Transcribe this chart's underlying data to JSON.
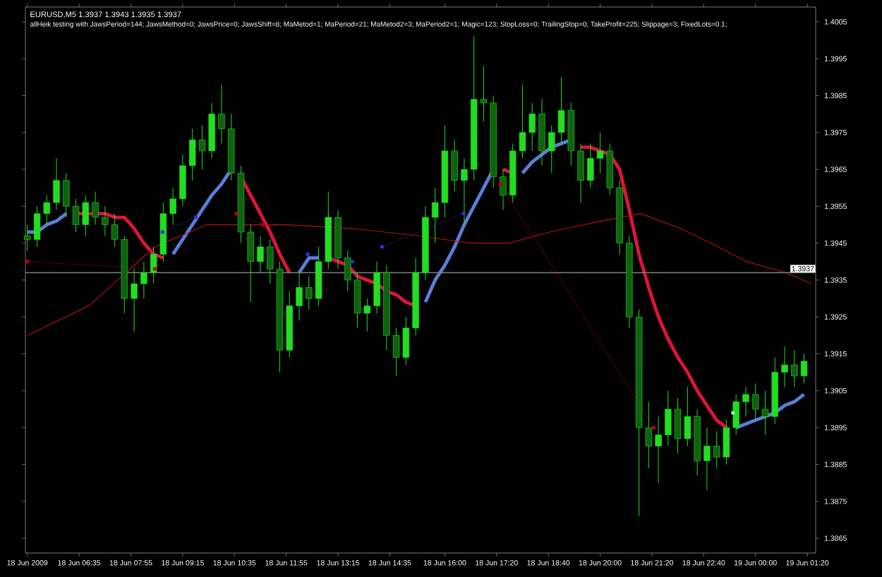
{
  "chart_data": {
    "type": "candlestick",
    "title": "EURUSD,M5  1.3937 1.3943 1.3935 1.3937",
    "subtitle": "allHeik testing with JawsPeriod=144; JawsMethod=0; JawsPrice=0; JawsShift=8; MaMetod=1; MaPeriod=21; MaMetod2=3; MaPeriod2=1; Magic=123; StopLoss=0; TrailingStop=0; TakeProfit=225; Slippage=3; FixedLots=0.1;",
    "color": "#22dd22",
    "x": [
      "2009-06-18T05:15",
      "2009-06-18T05:30",
      "2009-06-18T05:45",
      "2009-06-18T06:00",
      "2009-06-18T06:15",
      "2009-06-18T06:30",
      "2009-06-18T06:45",
      "2009-06-18T07:00",
      "2009-06-18T07:15",
      "2009-06-18T07:30",
      "2009-06-18T07:45",
      "2009-06-18T08:00",
      "2009-06-18T08:15",
      "2009-06-18T08:30",
      "2009-06-18T08:45",
      "2009-06-18T09:00",
      "2009-06-18T09:15",
      "2009-06-18T09:30",
      "2009-06-18T09:45",
      "2009-06-18T10:00",
      "2009-06-18T10:15",
      "2009-06-18T10:30",
      "2009-06-18T10:45",
      "2009-06-18T11:00",
      "2009-06-18T11:15",
      "2009-06-18T11:30",
      "2009-06-18T11:45",
      "2009-06-18T12:00",
      "2009-06-18T12:15",
      "2009-06-18T12:30",
      "2009-06-18T12:45",
      "2009-06-18T13:00",
      "2009-06-18T13:15",
      "2009-06-18T13:30",
      "2009-06-18T13:45",
      "2009-06-18T14:00",
      "2009-06-18T14:15",
      "2009-06-18T14:30",
      "2009-06-18T14:45",
      "2009-06-18T15:00",
      "2009-06-18T15:15",
      "2009-06-18T15:30",
      "2009-06-18T15:45",
      "2009-06-18T16:00",
      "2009-06-18T16:15",
      "2009-06-18T16:30",
      "2009-06-18T16:45",
      "2009-06-18T17:00",
      "2009-06-18T17:15",
      "2009-06-18T17:30",
      "2009-06-18T17:45",
      "2009-06-18T18:00",
      "2009-06-18T18:15",
      "2009-06-18T18:30",
      "2009-06-18T18:45",
      "2009-06-18T19:00",
      "2009-06-18T19:15",
      "2009-06-18T19:30",
      "2009-06-18T19:45",
      "2009-06-18T20:00",
      "2009-06-18T20:15",
      "2009-06-18T20:30",
      "2009-06-18T20:45",
      "2009-06-18T21:00",
      "2009-06-18T21:15",
      "2009-06-18T21:30",
      "2009-06-18T21:45",
      "2009-06-18T22:00",
      "2009-06-18T22:15",
      "2009-06-18T22:30",
      "2009-06-18T22:45",
      "2009-06-18T23:00",
      "2009-06-18T23:15",
      "2009-06-18T23:30",
      "2009-06-18T23:45",
      "2009-06-19T00:00",
      "2009-06-19T00:15",
      "2009-06-19T00:30",
      "2009-06-19T00:45",
      "2009-06-19T01:00",
      "2009-06-19T01:15"
    ],
    "ohlc": [
      [
        1.3947,
        1.395,
        1.3943,
        1.3946
      ],
      [
        1.3946,
        1.3955,
        1.3944,
        1.3953
      ],
      [
        1.3953,
        1.3958,
        1.395,
        1.3956
      ],
      [
        1.3956,
        1.3968,
        1.3954,
        1.3962
      ],
      [
        1.3962,
        1.3964,
        1.3952,
        1.3955
      ],
      [
        1.3955,
        1.3957,
        1.3948,
        1.395
      ],
      [
        1.395,
        1.3958,
        1.3947,
        1.3956
      ],
      [
        1.3956,
        1.3959,
        1.395,
        1.3952
      ],
      [
        1.3952,
        1.3955,
        1.3947,
        1.395
      ],
      [
        1.395,
        1.3953,
        1.3944,
        1.3946
      ],
      [
        1.3946,
        1.3947,
        1.3926,
        1.393
      ],
      [
        1.393,
        1.3938,
        1.3921,
        1.3934
      ],
      [
        1.3934,
        1.394,
        1.393,
        1.3937
      ],
      [
        1.3937,
        1.3944,
        1.3934,
        1.3942
      ],
      [
        1.3942,
        1.3956,
        1.394,
        1.3953
      ],
      [
        1.3953,
        1.396,
        1.395,
        1.3957
      ],
      [
        1.3957,
        1.3969,
        1.3955,
        1.3966
      ],
      [
        1.3966,
        1.3976,
        1.3962,
        1.3973
      ],
      [
        1.3973,
        1.3977,
        1.3965,
        1.397
      ],
      [
        1.397,
        1.3983,
        1.3968,
        1.398
      ],
      [
        1.398,
        1.3988,
        1.3972,
        1.3976
      ],
      [
        1.3976,
        1.398,
        1.3962,
        1.3964
      ],
      [
        1.3964,
        1.3966,
        1.3945,
        1.3948
      ],
      [
        1.3948,
        1.395,
        1.3929,
        1.394
      ],
      [
        1.394,
        1.3947,
        1.3937,
        1.3944
      ],
      [
        1.3944,
        1.3946,
        1.3934,
        1.3938
      ],
      [
        1.3938,
        1.394,
        1.391,
        1.3916
      ],
      [
        1.3916,
        1.3932,
        1.3914,
        1.3928
      ],
      [
        1.3928,
        1.3937,
        1.3924,
        1.3933
      ],
      [
        1.3933,
        1.3936,
        1.3927,
        1.393
      ],
      [
        1.393,
        1.3944,
        1.3928,
        1.394
      ],
      [
        1.394,
        1.3959,
        1.3938,
        1.3952
      ],
      [
        1.3952,
        1.3954,
        1.3938,
        1.3941
      ],
      [
        1.3941,
        1.3943,
        1.3932,
        1.3935
      ],
      [
        1.3935,
        1.3937,
        1.3922,
        1.3926
      ],
      [
        1.3926,
        1.393,
        1.3921,
        1.3928
      ],
      [
        1.3928,
        1.394,
        1.3926,
        1.3937
      ],
      [
        1.3937,
        1.3939,
        1.3916,
        1.392
      ],
      [
        1.392,
        1.3922,
        1.3909,
        1.3914
      ],
      [
        1.3914,
        1.3925,
        1.3912,
        1.3922
      ],
      [
        1.3922,
        1.3941,
        1.392,
        1.3937
      ],
      [
        1.3937,
        1.3955,
        1.3935,
        1.3952
      ],
      [
        1.3952,
        1.396,
        1.3945,
        1.3956
      ],
      [
        1.3956,
        1.3977,
        1.3952,
        1.397
      ],
      [
        1.397,
        1.3973,
        1.3959,
        1.3962
      ],
      [
        1.3962,
        1.3968,
        1.395,
        1.3965
      ],
      [
        1.3965,
        1.4001,
        1.3962,
        1.3984
      ],
      [
        1.3984,
        1.3993,
        1.3978,
        1.3983
      ],
      [
        1.3983,
        1.3985,
        1.396,
        1.3963
      ],
      [
        1.3963,
        1.3965,
        1.3954,
        1.3958
      ],
      [
        1.3958,
        1.3972,
        1.3956,
        1.397
      ],
      [
        1.397,
        1.3988,
        1.3968,
        1.3975
      ],
      [
        1.3975,
        1.3983,
        1.397,
        1.398
      ],
      [
        1.398,
        1.3984,
        1.3966,
        1.397
      ],
      [
        1.397,
        1.3977,
        1.3964,
        1.3975
      ],
      [
        1.3975,
        1.399,
        1.3972,
        1.3981
      ],
      [
        1.3981,
        1.3983,
        1.3966,
        1.397
      ],
      [
        1.397,
        1.3972,
        1.3956,
        1.3962
      ],
      [
        1.3962,
        1.3972,
        1.396,
        1.3968
      ],
      [
        1.3968,
        1.3975,
        1.3964,
        1.397
      ],
      [
        1.397,
        1.3972,
        1.3958,
        1.396
      ],
      [
        1.396,
        1.3962,
        1.3942,
        1.3945
      ],
      [
        1.3945,
        1.3947,
        1.3922,
        1.3925
      ],
      [
        1.3925,
        1.3927,
        1.3871,
        1.3895
      ],
      [
        1.3895,
        1.3902,
        1.3884,
        1.389
      ],
      [
        1.389,
        1.3898,
        1.388,
        1.3893
      ],
      [
        1.3893,
        1.3905,
        1.389,
        1.39
      ],
      [
        1.39,
        1.3903,
        1.3888,
        1.3892
      ],
      [
        1.3892,
        1.3906,
        1.389,
        1.3898
      ],
      [
        1.3898,
        1.39,
        1.3882,
        1.3886
      ],
      [
        1.3886,
        1.3895,
        1.3878,
        1.389
      ],
      [
        1.389,
        1.3894,
        1.3884,
        1.3887
      ],
      [
        1.3887,
        1.3897,
        1.3885,
        1.3895
      ],
      [
        1.3895,
        1.3904,
        1.3893,
        1.3902
      ],
      [
        1.3902,
        1.3906,
        1.3898,
        1.3904
      ],
      [
        1.3904,
        1.3907,
        1.3897,
        1.39
      ],
      [
        1.39,
        1.3905,
        1.3893,
        1.3898
      ],
      [
        1.3898,
        1.3914,
        1.3896,
        1.391
      ],
      [
        1.391,
        1.3917,
        1.3906,
        1.3912
      ],
      [
        1.3912,
        1.3916,
        1.3906,
        1.3909
      ],
      [
        1.3909,
        1.3915,
        1.3907,
        1.3913
      ]
    ],
    "series": [
      {
        "type": "line",
        "color": "#5a7fd8",
        "values": [
          1.3948,
          1.3948,
          1.395,
          1.3951,
          1.3953,
          null,
          null,
          null,
          null,
          null,
          null,
          null,
          null,
          null,
          null,
          1.3942,
          1.3946,
          1.395,
          1.3954,
          1.3958,
          1.3961,
          1.3965,
          null,
          null,
          null,
          null,
          null,
          null,
          1.3937,
          1.3941,
          1.3941,
          null,
          null,
          null,
          null,
          null,
          null,
          null,
          null,
          null,
          null,
          1.3929,
          1.3935,
          1.3939,
          1.3944,
          1.395,
          1.3955,
          1.396,
          1.3965,
          null,
          null,
          1.3964,
          1.3967,
          1.3969,
          1.3971,
          1.3972,
          1.3973,
          null,
          null,
          null,
          null,
          null,
          null,
          null,
          null,
          null,
          null,
          null,
          null,
          null,
          null,
          null,
          null,
          1.3895,
          1.3896,
          1.3897,
          1.3898,
          1.3899,
          1.3901,
          1.3902,
          1.3904
        ]
      },
      {
        "type": "line",
        "color": "#e01438",
        "values": [
          null,
          null,
          null,
          null,
          null,
          1.3953,
          1.3953,
          1.3953,
          1.3953,
          1.3952,
          1.3952,
          1.3949,
          1.3945,
          1.3942,
          1.3941,
          null,
          null,
          null,
          null,
          null,
          null,
          null,
          1.3963,
          1.3958,
          1.3953,
          1.3948,
          1.3942,
          1.3937,
          null,
          null,
          null,
          1.3941,
          1.394,
          1.3939,
          1.3936,
          1.3935,
          1.3934,
          1.3932,
          1.3931,
          1.3929,
          1.3928,
          null,
          null,
          null,
          null,
          null,
          null,
          null,
          null,
          1.3965,
          1.3964,
          null,
          null,
          null,
          null,
          null,
          null,
          1.3971,
          1.3971,
          1.397,
          1.3969,
          1.3965,
          1.3954,
          1.3942,
          1.3933,
          1.3925,
          1.3919,
          1.3914,
          1.391,
          1.3905,
          1.3901,
          1.3897,
          1.3895,
          null,
          null,
          null,
          null,
          null,
          null,
          null,
          null
        ]
      },
      {
        "type": "line",
        "color": "#b01010",
        "x": [
          "2009-06-18T05:15",
          "2009-06-18T06:50",
          "2009-06-18T08:32",
          "2009-06-18T09:53",
          "2009-06-18T11:55",
          "2009-06-18T13:37",
          "2009-06-18T15:18",
          "2009-06-18T16:39",
          "2009-06-18T17:40",
          "2009-06-18T18:41",
          "2009-06-18T20:02",
          "2009-06-18T21:03",
          "2009-06-18T22:04",
          "2009-06-18T22:51",
          "2009-06-18T23:46",
          "2009-06-19T00:47",
          "2009-06-19T01:27"
        ],
        "values": [
          1.392,
          1.3928,
          1.3944,
          1.395,
          1.395,
          1.3949,
          1.3947,
          1.3945,
          1.3945,
          1.3948,
          1.3951,
          1.3953,
          1.3949,
          1.3945,
          1.394,
          1.3937,
          1.3934
        ]
      },
      {
        "type": "line",
        "color": "#c00000",
        "line_style": "dotted",
        "marker": "circle",
        "x": [
          "2009-06-18T05:15",
          "2009-06-18T08:32"
        ],
        "values": [
          1.394,
          1.3938
        ]
      },
      {
        "type": "line",
        "color": "#3030d0",
        "line_style": "dotted",
        "marker": "circle",
        "x": [
          "2009-06-18T08:44",
          "2009-06-18T09:35"
        ],
        "values": [
          1.3948,
          1.3952
        ]
      },
      {
        "type": "line",
        "color": "#c00000",
        "line_style": "dotted",
        "marker": "circle",
        "x": [
          "2009-06-18T10:38",
          "2009-06-18T11:19"
        ],
        "values": [
          1.3953,
          1.395
        ]
      },
      {
        "type": "line",
        "color": "#3030d0",
        "line_style": "dotted",
        "marker": "circle",
        "x": [
          "2009-06-18T12:28",
          "2009-06-18T13:37"
        ],
        "values": [
          1.3942,
          1.394
        ]
      },
      {
        "type": "line",
        "color": "#3030d0",
        "line_style": "dotted",
        "marker": "circle",
        "x": [
          "2009-06-18T14:23",
          "2009-06-18T16:29"
        ],
        "values": [
          1.3944,
          1.3953
        ]
      },
      {
        "type": "line",
        "color": "#c00000",
        "line_style": "dotted",
        "marker": "circle",
        "x": [
          "2009-06-18T17:26",
          "2009-06-18T21:23"
        ],
        "values": [
          1.3961,
          1.3895
        ]
      },
      {
        "type": "scatter",
        "color": "#c0f0c0",
        "marker": "circle",
        "x": [
          "2009-06-18T23:25"
        ],
        "values": [
          1.3899
        ]
      }
    ],
    "xlim": [
      "2009-06-18T05:12",
      "2009-06-19T01:33"
    ],
    "ylim": [
      1.3861,
      1.4009
    ],
    "xticks": [
      {
        "value": "2009-06-18T05:15",
        "label": "18 Jun 2009"
      },
      {
        "value": "2009-06-18T06:35",
        "label": "18 Jun 06:35"
      },
      {
        "value": "2009-06-18T07:55",
        "label": "18 Jun 07:55"
      },
      {
        "value": "2009-06-18T09:15",
        "label": "18 Jun 09:15"
      },
      {
        "value": "2009-06-18T10:35",
        "label": "18 Jun 10:35"
      },
      {
        "value": "2009-06-18T11:55",
        "label": "18 Jun 11:55"
      },
      {
        "value": "2009-06-18T13:15",
        "label": "18 Jun 13:15"
      },
      {
        "value": "2009-06-18T14:35",
        "label": "18 Jun 14:35"
      },
      {
        "value": "2009-06-18T16:00",
        "label": "18 Jun 16:00"
      },
      {
        "value": "2009-06-18T17:20",
        "label": "18 Jun 17:20"
      },
      {
        "value": "2009-06-18T18:40",
        "label": "18 Jun 18:40"
      },
      {
        "value": "2009-06-18T20:00",
        "label": "18 Jun 20:00"
      },
      {
        "value": "2009-06-18T21:20",
        "label": "18 Jun 21:20"
      },
      {
        "value": "2009-06-18T22:40",
        "label": "18 Jun 22:40"
      },
      {
        "value": "2009-06-19T00:00",
        "label": "19 Jun 00:00"
      },
      {
        "value": "2009-06-19T01:20",
        "label": "19 Jun 01:20"
      }
    ],
    "yticks": [
      1.4005,
      1.3995,
      1.3985,
      1.3975,
      1.3965,
      1.3955,
      1.3945,
      1.3935,
      1.3925,
      1.3915,
      1.3905,
      1.3895,
      1.3885,
      1.3875,
      1.3865
    ],
    "ref_lines": [
      {
        "axis": "y",
        "value": 1.3937,
        "label": "1.3937",
        "color": "#808080"
      }
    ]
  }
}
